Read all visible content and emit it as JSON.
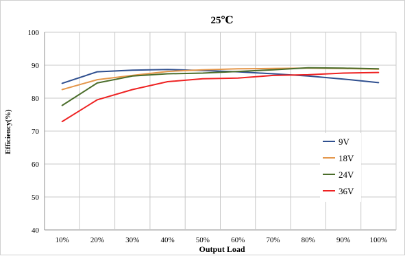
{
  "chart_data": {
    "type": "line",
    "title": "25℃",
    "xlabel": "Output Load",
    "ylabel": "Efficiency(%)",
    "categories": [
      "10%",
      "20%",
      "30%",
      "40%",
      "50%",
      "60%",
      "70%",
      "80%",
      "90%",
      "100%"
    ],
    "yticks": [
      40,
      50,
      60,
      70,
      80,
      90,
      100
    ],
    "ylim": [
      40,
      100
    ],
    "grid": true,
    "legend_position": "right",
    "series": [
      {
        "name": "9V",
        "color": "#2f4f8f",
        "values": [
          84.5,
          88.0,
          88.5,
          88.7,
          88.4,
          88.0,
          87.4,
          86.7,
          85.8,
          84.7
        ]
      },
      {
        "name": "18V",
        "color": "#e4964a",
        "values": [
          82.6,
          85.6,
          86.9,
          88.1,
          88.6,
          88.9,
          89.0,
          89.1,
          89.0,
          88.8
        ]
      },
      {
        "name": "24V",
        "color": "#4a6d2a",
        "values": [
          77.8,
          84.6,
          86.7,
          87.4,
          87.6,
          88.1,
          88.6,
          89.2,
          89.1,
          88.9
        ]
      },
      {
        "name": "36V",
        "color": "#ee2222",
        "values": [
          72.9,
          79.5,
          82.6,
          85.0,
          85.9,
          86.1,
          86.9,
          87.1,
          87.6,
          87.8
        ]
      }
    ]
  }
}
